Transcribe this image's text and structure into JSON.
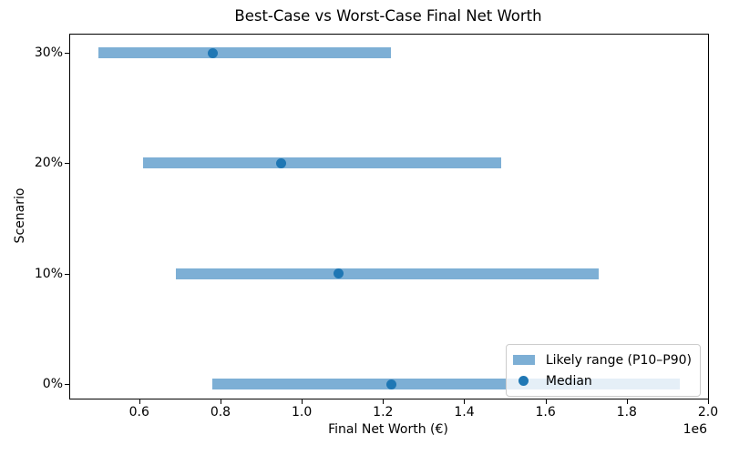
{
  "chart_data": {
    "type": "range_bar",
    "title": "Best-Case vs Worst-Case Final Net Worth",
    "xlabel": "Final Net Worth (€)",
    "ylabel": "Scenario",
    "x_offset_text": "1e6",
    "xlim": [
      430000,
      2000000
    ],
    "grid": false,
    "xticks": {
      "values": [
        600000,
        800000,
        1000000,
        1200000,
        1400000,
        1600000,
        1800000,
        2000000
      ],
      "labels": [
        "0.6",
        "0.8",
        "1.0",
        "1.2",
        "1.4",
        "1.6",
        "1.8",
        "2.0"
      ]
    },
    "scenarios": [
      {
        "label": "30%",
        "p10": 500000,
        "median": 780000,
        "p90": 1220000
      },
      {
        "label": "20%",
        "p10": 610000,
        "median": 950000,
        "p90": 1490000
      },
      {
        "label": "10%",
        "p10": 690000,
        "median": 1090000,
        "p90": 1730000
      },
      {
        "label": "0%",
        "p10": 780000,
        "median": 1220000,
        "p90": 1930000
      }
    ],
    "legend": {
      "position": "lower right",
      "items": [
        {
          "type": "bar",
          "label": "Likely range (P10–P90)"
        },
        {
          "type": "dot",
          "label": "Median"
        }
      ]
    },
    "colors": {
      "range_bar": "#7dafd5",
      "median_dot": "#1f77b4",
      "axis": "#000000",
      "legend_border": "#cccccc"
    }
  }
}
